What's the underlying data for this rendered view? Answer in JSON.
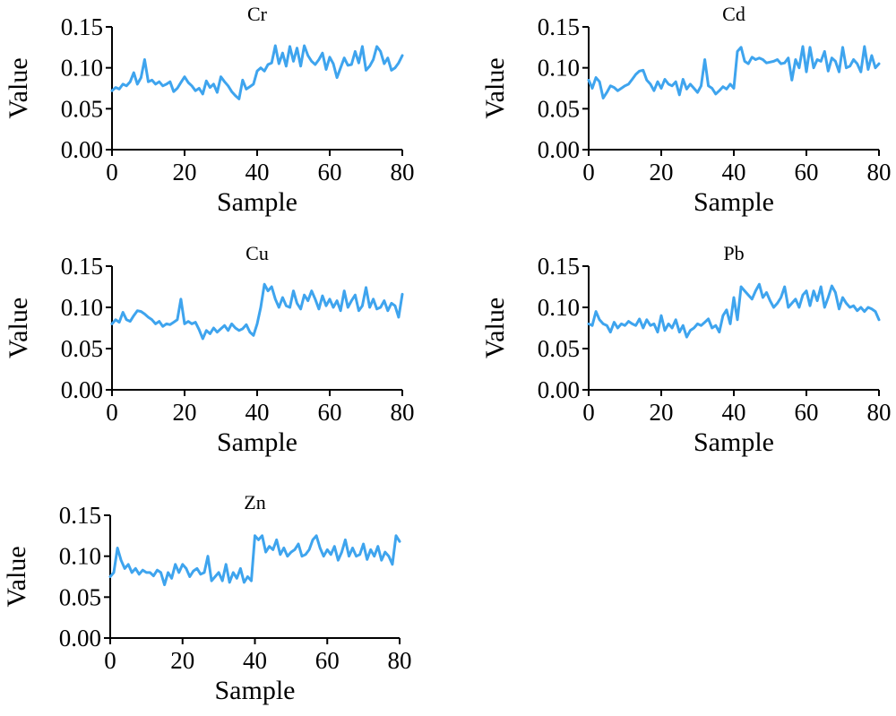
{
  "chart_data": [
    {
      "type": "line",
      "title": "Cr",
      "xlabel": "Sample",
      "ylabel": "Value",
      "xlim": [
        0,
        80
      ],
      "ylim": [
        0,
        0.15
      ],
      "xticks": [
        "0",
        "20",
        "40",
        "60",
        "80"
      ],
      "yticks": [
        "0.00",
        "0.05",
        "0.10",
        "0.15"
      ],
      "color": "#3ea4ee",
      "series": [
        {
          "x": [
            0,
            1,
            2,
            3,
            4,
            5,
            6,
            7,
            8,
            9,
            10,
            11,
            12,
            13,
            14,
            15,
            16,
            17,
            18,
            19,
            20,
            21,
            22,
            23,
            24,
            25,
            26,
            27,
            28,
            29,
            30,
            31,
            32,
            33,
            34,
            35,
            36,
            37,
            38,
            39,
            40,
            41,
            42,
            43,
            44,
            45,
            46,
            47,
            48,
            49,
            50,
            51,
            52,
            53,
            54,
            55,
            56,
            57,
            58,
            59,
            60,
            61,
            62,
            63,
            64,
            65,
            66,
            67,
            68,
            69,
            70,
            71,
            72,
            73,
            74,
            75,
            76,
            77,
            78,
            79,
            80
          ],
          "y": [
            0.072,
            0.076,
            0.074,
            0.08,
            0.078,
            0.083,
            0.094,
            0.08,
            0.088,
            0.11,
            0.083,
            0.085,
            0.08,
            0.083,
            0.078,
            0.08,
            0.083,
            0.071,
            0.075,
            0.082,
            0.089,
            0.082,
            0.078,
            0.072,
            0.075,
            0.068,
            0.084,
            0.076,
            0.08,
            0.07,
            0.089,
            0.083,
            0.078,
            0.071,
            0.066,
            0.062,
            0.085,
            0.074,
            0.077,
            0.08,
            0.096,
            0.1,
            0.096,
            0.104,
            0.106,
            0.127,
            0.105,
            0.118,
            0.102,
            0.126,
            0.108,
            0.124,
            0.102,
            0.127,
            0.115,
            0.108,
            0.104,
            0.11,
            0.118,
            0.098,
            0.113,
            0.105,
            0.088,
            0.1,
            0.112,
            0.103,
            0.104,
            0.12,
            0.106,
            0.126,
            0.097,
            0.102,
            0.11,
            0.126,
            0.12,
            0.105,
            0.112,
            0.097,
            0.1,
            0.106,
            0.115
          ]
        }
      ]
    },
    {
      "type": "line",
      "title": "Cd",
      "xlabel": "Sample",
      "ylabel": "Value",
      "xlim": [
        0,
        80
      ],
      "ylim": [
        0,
        0.15
      ],
      "xticks": [
        "0",
        "20",
        "40",
        "60",
        "80"
      ],
      "yticks": [
        "0.00",
        "0.05",
        "0.10",
        "0.15"
      ],
      "color": "#3ea4ee",
      "series": [
        {
          "x": [
            0,
            1,
            2,
            3,
            4,
            5,
            6,
            7,
            8,
            9,
            10,
            11,
            12,
            13,
            14,
            15,
            16,
            17,
            18,
            19,
            20,
            21,
            22,
            23,
            24,
            25,
            26,
            27,
            28,
            29,
            30,
            31,
            32,
            33,
            34,
            35,
            36,
            37,
            38,
            39,
            40,
            41,
            42,
            43,
            44,
            45,
            46,
            47,
            48,
            49,
            50,
            51,
            52,
            53,
            54,
            55,
            56,
            57,
            58,
            59,
            60,
            61,
            62,
            63,
            64,
            65,
            66,
            67,
            68,
            69,
            70,
            71,
            72,
            73,
            74,
            75,
            76,
            77,
            78,
            79,
            80
          ],
          "y": [
            0.085,
            0.075,
            0.088,
            0.083,
            0.063,
            0.07,
            0.078,
            0.076,
            0.072,
            0.075,
            0.078,
            0.08,
            0.086,
            0.092,
            0.096,
            0.097,
            0.085,
            0.08,
            0.072,
            0.083,
            0.075,
            0.086,
            0.08,
            0.078,
            0.083,
            0.067,
            0.086,
            0.074,
            0.08,
            0.075,
            0.07,
            0.078,
            0.11,
            0.078,
            0.075,
            0.068,
            0.072,
            0.077,
            0.074,
            0.08,
            0.075,
            0.12,
            0.125,
            0.108,
            0.105,
            0.113,
            0.11,
            0.112,
            0.11,
            0.106,
            0.107,
            0.108,
            0.11,
            0.105,
            0.106,
            0.112,
            0.085,
            0.11,
            0.1,
            0.126,
            0.095,
            0.125,
            0.1,
            0.11,
            0.108,
            0.12,
            0.096,
            0.112,
            0.108,
            0.095,
            0.125,
            0.1,
            0.102,
            0.11,
            0.105,
            0.095,
            0.126,
            0.098,
            0.115,
            0.1,
            0.105
          ]
        }
      ]
    },
    {
      "type": "line",
      "title": "Cu",
      "xlabel": "Sample",
      "ylabel": "Value",
      "xlim": [
        0,
        80
      ],
      "ylim": [
        0,
        0.15
      ],
      "xticks": [
        "0",
        "20",
        "40",
        "60",
        "80"
      ],
      "yticks": [
        "0.00",
        "0.05",
        "0.10",
        "0.15"
      ],
      "color": "#3ea4ee",
      "series": [
        {
          "x": [
            0,
            1,
            2,
            3,
            4,
            5,
            6,
            7,
            8,
            9,
            10,
            11,
            12,
            13,
            14,
            15,
            16,
            17,
            18,
            19,
            20,
            21,
            22,
            23,
            24,
            25,
            26,
            27,
            28,
            29,
            30,
            31,
            32,
            33,
            34,
            35,
            36,
            37,
            38,
            39,
            40,
            41,
            42,
            43,
            44,
            45,
            46,
            47,
            48,
            49,
            50,
            51,
            52,
            53,
            54,
            55,
            56,
            57,
            58,
            59,
            60,
            61,
            62,
            63,
            64,
            65,
            66,
            67,
            68,
            69,
            70,
            71,
            72,
            73,
            74,
            75,
            76,
            77,
            78,
            79,
            80
          ],
          "y": [
            0.08,
            0.085,
            0.082,
            0.094,
            0.085,
            0.083,
            0.09,
            0.096,
            0.095,
            0.092,
            0.088,
            0.085,
            0.08,
            0.083,
            0.077,
            0.08,
            0.079,
            0.082,
            0.085,
            0.11,
            0.08,
            0.083,
            0.08,
            0.082,
            0.073,
            0.062,
            0.072,
            0.068,
            0.075,
            0.07,
            0.074,
            0.078,
            0.072,
            0.08,
            0.075,
            0.072,
            0.074,
            0.079,
            0.07,
            0.066,
            0.08,
            0.1,
            0.128,
            0.12,
            0.125,
            0.11,
            0.1,
            0.112,
            0.102,
            0.1,
            0.12,
            0.105,
            0.098,
            0.115,
            0.108,
            0.12,
            0.11,
            0.098,
            0.114,
            0.102,
            0.11,
            0.1,
            0.108,
            0.096,
            0.12,
            0.1,
            0.108,
            0.115,
            0.096,
            0.102,
            0.124,
            0.1,
            0.11,
            0.098,
            0.1,
            0.108,
            0.096,
            0.105,
            0.102,
            0.088,
            0.116
          ]
        }
      ]
    },
    {
      "type": "line",
      "title": "Pb",
      "xlabel": "Sample",
      "ylabel": "Value",
      "xlim": [
        0,
        80
      ],
      "ylim": [
        0,
        0.15
      ],
      "xticks": [
        "0",
        "20",
        "40",
        "60",
        "80"
      ],
      "yticks": [
        "0.00",
        "0.05",
        "0.10",
        "0.15"
      ],
      "color": "#3ea4ee",
      "series": [
        {
          "x": [
            0,
            1,
            2,
            3,
            4,
            5,
            6,
            7,
            8,
            9,
            10,
            11,
            12,
            13,
            14,
            15,
            16,
            17,
            18,
            19,
            20,
            21,
            22,
            23,
            24,
            25,
            26,
            27,
            28,
            29,
            30,
            31,
            32,
            33,
            34,
            35,
            36,
            37,
            38,
            39,
            40,
            41,
            42,
            43,
            44,
            45,
            46,
            47,
            48,
            49,
            50,
            51,
            52,
            53,
            54,
            55,
            56,
            57,
            58,
            59,
            60,
            61,
            62,
            63,
            64,
            65,
            66,
            67,
            68,
            69,
            70,
            71,
            72,
            73,
            74,
            75,
            76,
            77,
            78,
            79,
            80
          ],
          "y": [
            0.08,
            0.078,
            0.095,
            0.085,
            0.08,
            0.078,
            0.07,
            0.082,
            0.075,
            0.08,
            0.078,
            0.083,
            0.08,
            0.078,
            0.086,
            0.075,
            0.085,
            0.078,
            0.08,
            0.07,
            0.09,
            0.072,
            0.08,
            0.075,
            0.085,
            0.07,
            0.078,
            0.064,
            0.072,
            0.075,
            0.08,
            0.078,
            0.082,
            0.086,
            0.075,
            0.078,
            0.07,
            0.09,
            0.097,
            0.08,
            0.112,
            0.085,
            0.125,
            0.12,
            0.115,
            0.11,
            0.12,
            0.128,
            0.112,
            0.118,
            0.108,
            0.1,
            0.105,
            0.112,
            0.125,
            0.1,
            0.105,
            0.11,
            0.1,
            0.115,
            0.12,
            0.102,
            0.12,
            0.108,
            0.125,
            0.1,
            0.112,
            0.126,
            0.118,
            0.098,
            0.112,
            0.105,
            0.1,
            0.102,
            0.096,
            0.1,
            0.095,
            0.1,
            0.098,
            0.095,
            0.085
          ]
        }
      ]
    },
    {
      "type": "line",
      "title": "Zn",
      "xlabel": "Sample",
      "ylabel": "Value",
      "xlim": [
        0,
        80
      ],
      "ylim": [
        0,
        0.15
      ],
      "xticks": [
        "0",
        "20",
        "40",
        "60",
        "80"
      ],
      "yticks": [
        "0.00",
        "0.05",
        "0.10",
        "0.15"
      ],
      "color": "#3ea4ee",
      "series": [
        {
          "x": [
            0,
            1,
            2,
            3,
            4,
            5,
            6,
            7,
            8,
            9,
            10,
            11,
            12,
            13,
            14,
            15,
            16,
            17,
            18,
            19,
            20,
            21,
            22,
            23,
            24,
            25,
            26,
            27,
            28,
            29,
            30,
            31,
            32,
            33,
            34,
            35,
            36,
            37,
            38,
            39,
            40,
            41,
            42,
            43,
            44,
            45,
            46,
            47,
            48,
            49,
            50,
            51,
            52,
            53,
            54,
            55,
            56,
            57,
            58,
            59,
            60,
            61,
            62,
            63,
            64,
            65,
            66,
            67,
            68,
            69,
            70,
            71,
            72,
            73,
            74,
            75,
            76,
            77,
            78,
            79,
            80
          ],
          "y": [
            0.075,
            0.08,
            0.11,
            0.095,
            0.085,
            0.09,
            0.08,
            0.085,
            0.078,
            0.083,
            0.08,
            0.08,
            0.076,
            0.083,
            0.08,
            0.065,
            0.08,
            0.073,
            0.09,
            0.08,
            0.09,
            0.085,
            0.075,
            0.082,
            0.085,
            0.078,
            0.08,
            0.1,
            0.07,
            0.075,
            0.08,
            0.07,
            0.09,
            0.068,
            0.08,
            0.073,
            0.085,
            0.068,
            0.075,
            0.07,
            0.125,
            0.12,
            0.125,
            0.105,
            0.112,
            0.108,
            0.12,
            0.102,
            0.11,
            0.1,
            0.105,
            0.108,
            0.115,
            0.1,
            0.102,
            0.108,
            0.12,
            0.125,
            0.11,
            0.1,
            0.108,
            0.102,
            0.112,
            0.095,
            0.105,
            0.12,
            0.1,
            0.11,
            0.1,
            0.102,
            0.115,
            0.096,
            0.108,
            0.1,
            0.112,
            0.095,
            0.105,
            0.1,
            0.09,
            0.125,
            0.118
          ]
        }
      ]
    }
  ]
}
